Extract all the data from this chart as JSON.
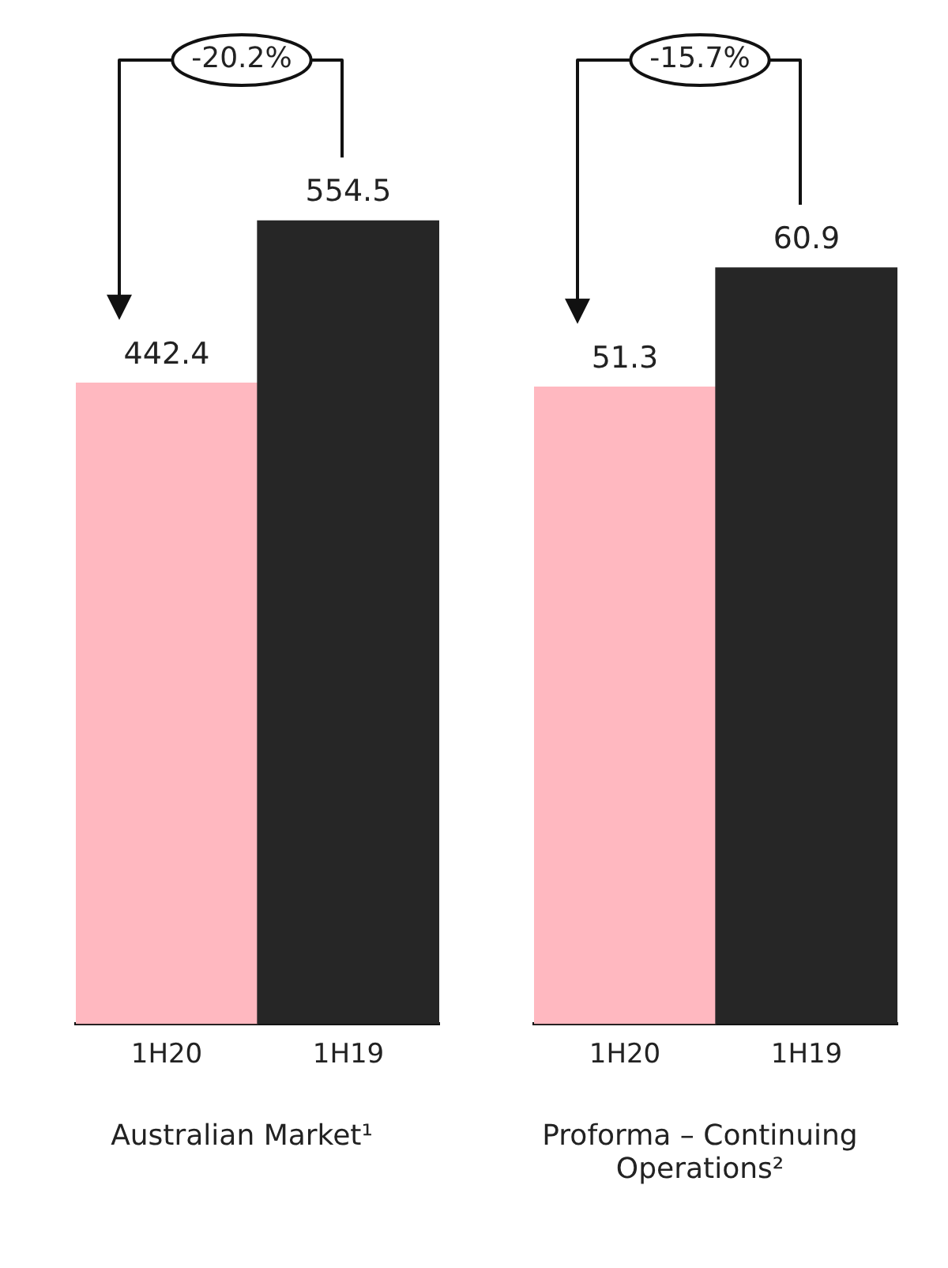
{
  "chart_data": [
    {
      "type": "bar",
      "xlabel": "Australian Market¹",
      "categories": [
        "1H20",
        "1H19"
      ],
      "values": [
        442.4,
        554.5
      ],
      "colors": [
        "#ffb8c0",
        "#262626"
      ],
      "data_labels": true,
      "tick_labels": "x",
      "grid": false,
      "legend": false,
      "annotations": [
        "-20.2%"
      ]
    },
    {
      "type": "bar",
      "xlabel": "Proforma – Continuing Operations²",
      "categories": [
        "1H20",
        "1H19"
      ],
      "values": [
        51.3,
        60.9
      ],
      "colors": [
        "#ffb8c0",
        "#262626"
      ],
      "data_labels": true,
      "tick_labels": "x",
      "grid": false,
      "legend": false,
      "annotations": [
        "-15.7%"
      ]
    }
  ]
}
